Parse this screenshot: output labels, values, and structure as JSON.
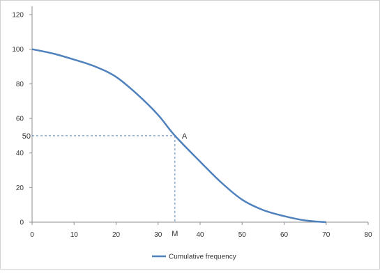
{
  "chart_data": {
    "type": "line",
    "title": "",
    "xlabel": "",
    "ylabel": "",
    "xlim": [
      0,
      80
    ],
    "ylim": [
      0,
      120
    ],
    "x_ticks": [
      0,
      10,
      20,
      30,
      40,
      50,
      60,
      70,
      80
    ],
    "y_ticks": [
      0,
      20,
      40,
      60,
      80,
      100,
      120
    ],
    "extra_y_tick": 50,
    "x_marker_label": "M",
    "grid": false,
    "legend_position": "bottom",
    "series": [
      {
        "name": "Cumulative frequency",
        "color": "#4f81bd",
        "x": [
          0,
          5,
          10,
          15,
          20,
          25,
          30,
          34,
          40,
          45,
          50,
          55,
          60,
          65,
          70
        ],
        "y": [
          100,
          97.5,
          94,
          90,
          84,
          74,
          62,
          50,
          35,
          23,
          13,
          7,
          3.5,
          1,
          0
        ]
      }
    ],
    "annotations": [
      {
        "label": "A",
        "x": 34,
        "y": 50
      }
    ],
    "reference_lines": {
      "horizontal_y": 50,
      "vertical_x": 34
    }
  }
}
